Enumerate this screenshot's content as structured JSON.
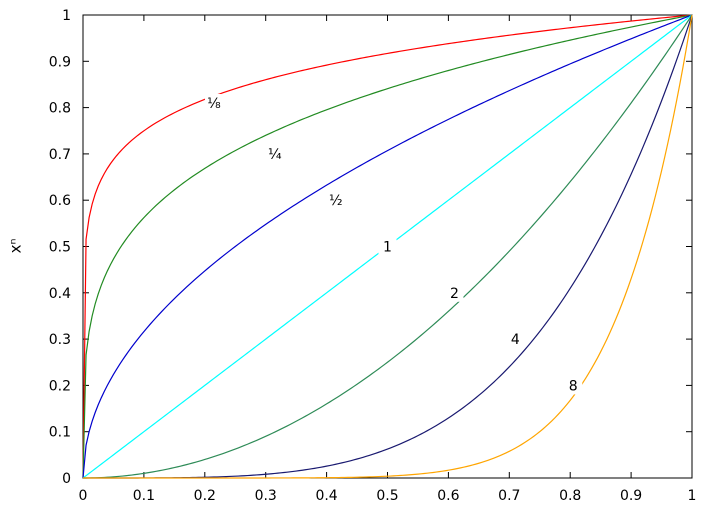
{
  "chart_data": {
    "type": "line",
    "title": "",
    "xlabel": "",
    "ylabel": "xⁿ",
    "xlim": [
      0,
      1
    ],
    "ylim": [
      0,
      1
    ],
    "xticks": [
      "0",
      "0.1",
      "0.2",
      "0.3",
      "0.4",
      "0.5",
      "0.6",
      "0.7",
      "0.8",
      "0.9",
      "1"
    ],
    "yticks": [
      "0",
      "0.1",
      "0.2",
      "0.3",
      "0.4",
      "0.5",
      "0.6",
      "0.7",
      "0.8",
      "0.9",
      "1"
    ],
    "grid": false,
    "legend": "none",
    "x": [
      0,
      0.01,
      0.02,
      0.05,
      0.1,
      0.15,
      0.2,
      0.25,
      0.3,
      0.35,
      0.4,
      0.45,
      0.5,
      0.55,
      0.6,
      0.65,
      0.7,
      0.75,
      0.8,
      0.85,
      0.9,
      0.95,
      1
    ],
    "series": [
      {
        "name": "⅛",
        "exponent": 0.125,
        "color": "#ff0000",
        "label_at": [
          0.215,
          0.81
        ],
        "values": [
          0,
          0.562,
          0.613,
          0.688,
          0.75,
          0.789,
          0.818,
          0.841,
          0.86,
          0.877,
          0.892,
          0.905,
          0.917,
          0.928,
          0.938,
          0.948,
          0.956,
          0.965,
          0.972,
          0.98,
          0.987,
          0.994,
          1
        ]
      },
      {
        "name": "¼",
        "exponent": 0.25,
        "color": "#228b22",
        "label_at": [
          0.315,
          0.7
        ],
        "values": [
          0,
          0.316,
          0.376,
          0.473,
          0.562,
          0.622,
          0.669,
          0.707,
          0.74,
          0.769,
          0.795,
          0.819,
          0.841,
          0.861,
          0.88,
          0.898,
          0.915,
          0.931,
          0.946,
          0.96,
          0.974,
          0.987,
          1
        ]
      },
      {
        "name": "½",
        "exponent": 0.5,
        "color": "#0000cd",
        "label_at": [
          0.415,
          0.6
        ],
        "values": [
          0,
          0.1,
          0.141,
          0.224,
          0.316,
          0.387,
          0.447,
          0.5,
          0.548,
          0.592,
          0.632,
          0.671,
          0.707,
          0.742,
          0.775,
          0.806,
          0.837,
          0.866,
          0.894,
          0.922,
          0.949,
          0.975,
          1
        ]
      },
      {
        "name": "1",
        "exponent": 1,
        "color": "#00ffff",
        "label_at": [
          0.5,
          0.5
        ],
        "values": [
          0,
          0.01,
          0.02,
          0.05,
          0.1,
          0.15,
          0.2,
          0.25,
          0.3,
          0.35,
          0.4,
          0.45,
          0.5,
          0.55,
          0.6,
          0.65,
          0.7,
          0.75,
          0.8,
          0.85,
          0.9,
          0.95,
          1
        ]
      },
      {
        "name": "2",
        "exponent": 2,
        "color": "#2e8b57",
        "label_at": [
          0.61,
          0.4
        ],
        "values": [
          0,
          0,
          0,
          0.003,
          0.01,
          0.023,
          0.04,
          0.063,
          0.09,
          0.123,
          0.16,
          0.203,
          0.25,
          0.303,
          0.36,
          0.423,
          0.49,
          0.563,
          0.64,
          0.723,
          0.81,
          0.903,
          1
        ]
      },
      {
        "name": "4",
        "exponent": 4,
        "color": "#191970",
        "label_at": [
          0.71,
          0.3
        ],
        "values": [
          0,
          0,
          0,
          0,
          0,
          0.001,
          0.002,
          0.004,
          0.008,
          0.015,
          0.026,
          0.041,
          0.063,
          0.092,
          0.13,
          0.179,
          0.24,
          0.316,
          0.41,
          0.522,
          0.656,
          0.815,
          1
        ]
      },
      {
        "name": "8",
        "exponent": 8,
        "color": "#ffa500",
        "label_at": [
          0.805,
          0.2
        ],
        "values": [
          0,
          0,
          0,
          0,
          0,
          0,
          0,
          0,
          0,
          0,
          0.001,
          0.002,
          0.004,
          0.008,
          0.017,
          0.032,
          0.058,
          0.1,
          0.168,
          0.272,
          0.43,
          0.663,
          1
        ]
      }
    ]
  }
}
